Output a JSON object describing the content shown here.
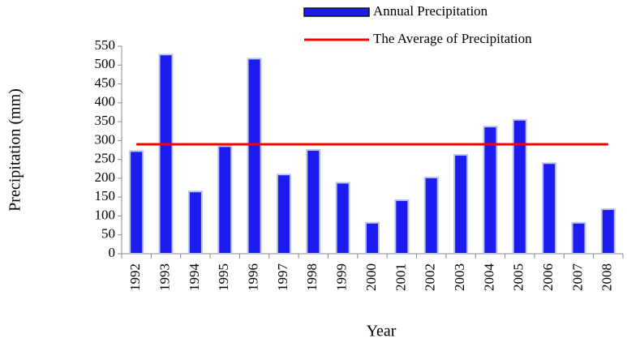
{
  "chart_data": {
    "type": "bar",
    "x_label": "Year",
    "y_label": "Precipitation (mm)",
    "categories": [
      "1992",
      "1993",
      "1994",
      "1995",
      "1996",
      "1997",
      "1998",
      "1999",
      "2000",
      "2001",
      "2002",
      "2003",
      "2004",
      "2005",
      "2006",
      "2007",
      "2008"
    ],
    "series": [
      {
        "name": "Annual Precipitation",
        "color": "#1c1cf0",
        "type": "bar",
        "values": [
          272,
          528,
          165,
          285,
          517,
          210,
          275,
          188,
          82,
          142,
          202,
          262,
          337,
          355,
          240,
          82,
          118
        ]
      },
      {
        "name": "The Average of Precipitation",
        "color": "#ff0000",
        "type": "line",
        "values": [
          290,
          290,
          290,
          290,
          290,
          290,
          290,
          290,
          290,
          290,
          290,
          290,
          290,
          290,
          290,
          290,
          290
        ]
      }
    ],
    "ylim": [
      0,
      550
    ],
    "yticks": [
      0,
      50,
      100,
      150,
      200,
      250,
      300,
      350,
      400,
      450,
      500,
      550
    ],
    "legend": "top-right",
    "grid": false
  }
}
